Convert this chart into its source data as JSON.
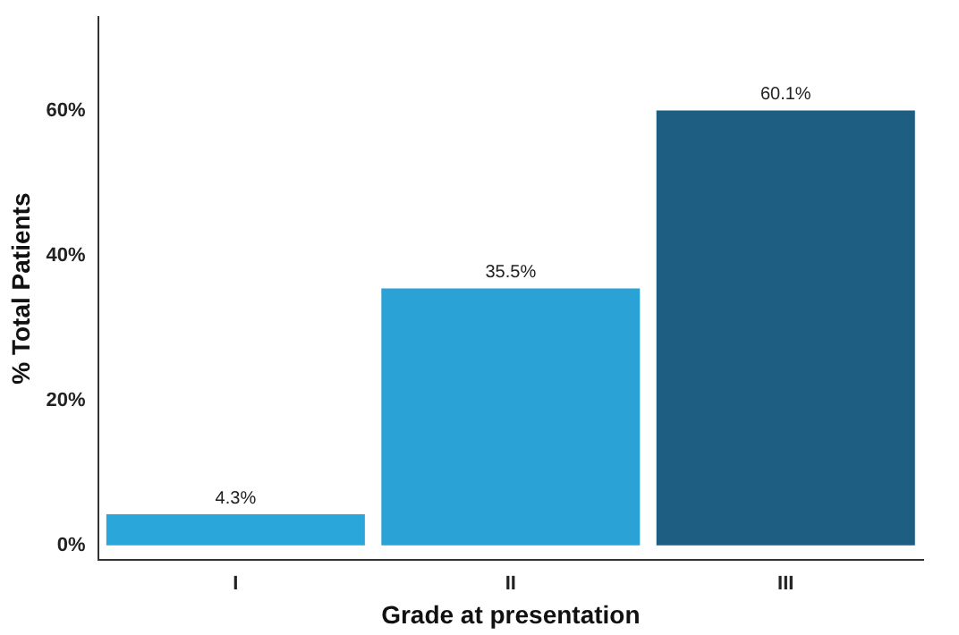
{
  "chart_data": {
    "type": "bar",
    "xlabel": "Grade at presentation",
    "ylabel": "% Total Patients",
    "categories": [
      "I",
      "II",
      "III"
    ],
    "values": [
      4.3,
      35.5,
      60.1
    ],
    "colors": [
      "#2aa6da",
      "#2aa2d6",
      "#1d5e82"
    ],
    "value_labels": [
      "4.3%",
      "35.5%",
      "60.1%"
    ],
    "ylim": [
      -2,
      73
    ],
    "yticks": [
      {
        "value": 0,
        "label": "0%"
      },
      {
        "value": 20,
        "label": "20%"
      },
      {
        "value": 40,
        "label": "40%"
      },
      {
        "value": 60,
        "label": "60%"
      }
    ],
    "grid": false,
    "legend": false
  }
}
